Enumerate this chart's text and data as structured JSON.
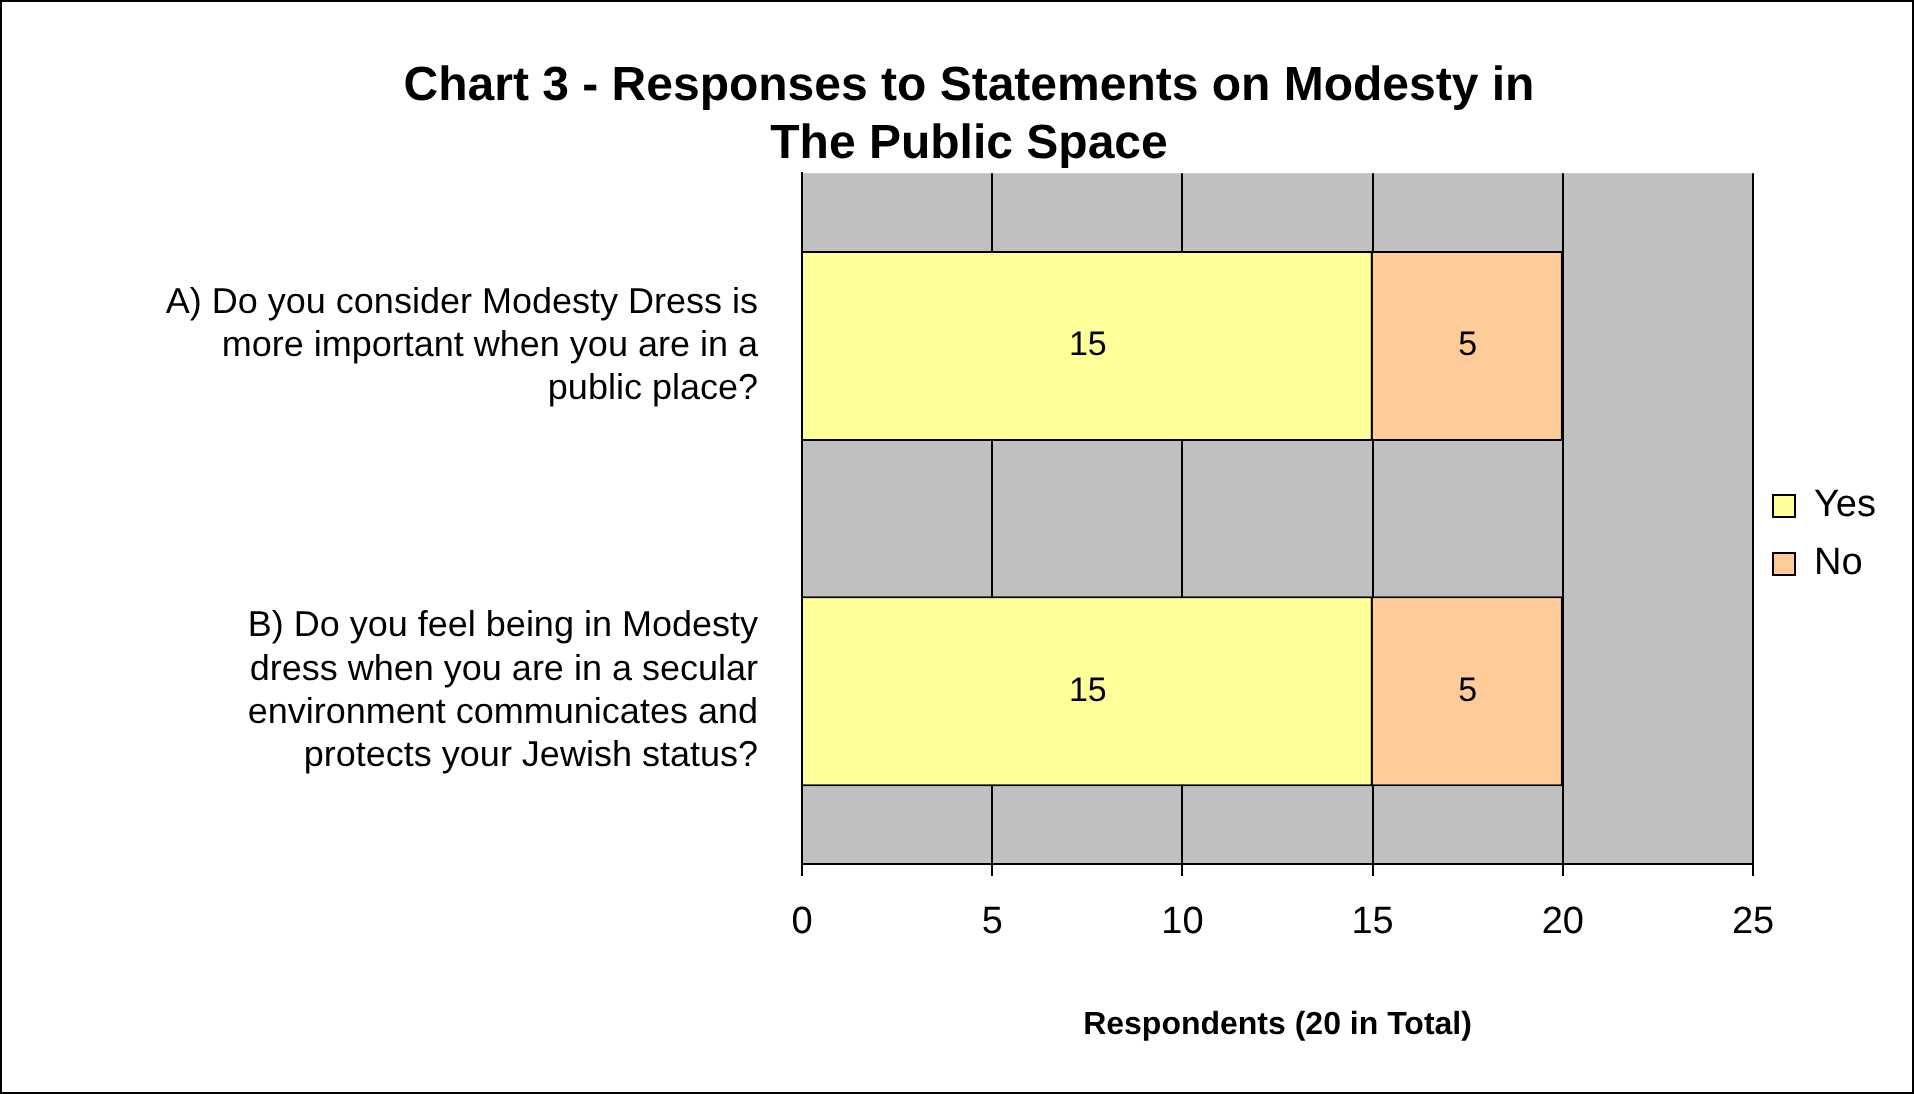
{
  "chart_data": {
    "type": "bar",
    "orientation": "horizontal",
    "stacked": true,
    "title": "Chart 3 - Responses to Statements on Modesty in The Public Space",
    "xlabel": "Respondents (20 in Total)",
    "categories": [
      "A) Do you consider Modesty Dress is more important when you are in a public place?",
      "B) Do you feel being in Modesty dress when you are in a secular environment communicates and protects your Jewish status?"
    ],
    "series": [
      {
        "name": "Yes",
        "color": "#ffff99",
        "values": [
          15,
          15
        ]
      },
      {
        "name": "No",
        "color": "#ffcc99",
        "values": [
          5,
          5
        ]
      }
    ],
    "xlim": [
      0,
      25
    ],
    "xticks": [
      0,
      5,
      10,
      15,
      20,
      25
    ],
    "grid": "x",
    "legend": "right",
    "data_labels": true
  }
}
